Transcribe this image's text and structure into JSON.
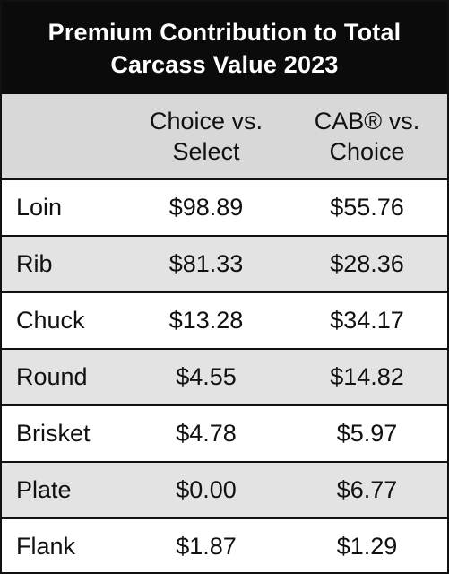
{
  "title": {
    "line1": "Premium Contribution to Total",
    "line2": "Carcass Value 2023"
  },
  "columns": [
    {
      "line1": "Choice vs.",
      "line2": "Select"
    },
    {
      "line1": "CAB® vs.",
      "line2": "Choice"
    }
  ],
  "rows": [
    {
      "label": "Loin",
      "col1": "$98.89",
      "col2": "$55.76"
    },
    {
      "label": "Rib",
      "col1": "$81.33",
      "col2": "$28.36"
    },
    {
      "label": "Chuck",
      "col1": "$13.28",
      "col2": "$34.17"
    },
    {
      "label": "Round",
      "col1": "$4.55",
      "col2": "$14.82"
    },
    {
      "label": "Brisket",
      "col1": "$4.78",
      "col2": "$5.97"
    },
    {
      "label": "Plate",
      "col1": "$0.00",
      "col2": "$6.77"
    },
    {
      "label": "Flank",
      "col1": "$1.87",
      "col2": "$1.29"
    }
  ],
  "chart_data": {
    "type": "table",
    "title": "Premium Contribution to Total Carcass Value 2023",
    "columns": [
      "Choice vs. Select",
      "CAB® vs. Choice"
    ],
    "categories": [
      "Loin",
      "Rib",
      "Chuck",
      "Round",
      "Brisket",
      "Plate",
      "Flank"
    ],
    "series": [
      {
        "name": "Choice vs. Select",
        "values": [
          98.89,
          81.33,
          13.28,
          4.55,
          4.78,
          0.0,
          1.87
        ]
      },
      {
        "name": "CAB® vs. Choice",
        "values": [
          55.76,
          28.36,
          34.17,
          14.82,
          5.97,
          6.77,
          1.29
        ]
      }
    ]
  },
  "colors": {
    "title_background": "#0b0b0b",
    "title_text": "#ffffff",
    "header_background": "#d8d8d8",
    "shaded_row": "#e3e3e3",
    "border": "#111111"
  }
}
